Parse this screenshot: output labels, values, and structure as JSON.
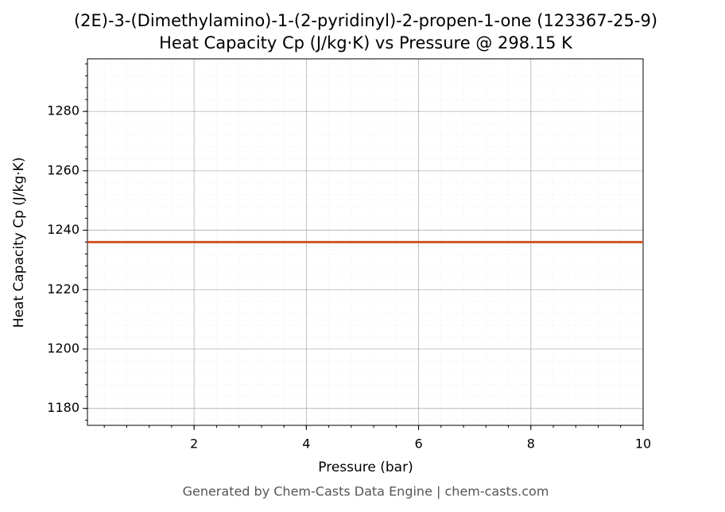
{
  "chart_data": {
    "type": "line",
    "title": "(2E)-3-(Dimethylamino)-1-(2-pyridinyl)-2-propen-1-one (123367-25-9)",
    "subtitle": "Heat Capacity Cp (J/kg·K) vs Pressure @ 298.15 K",
    "x_label": "Pressure (bar)",
    "y_label": "Heat Capacity Cp (J/kg·K)",
    "footer": "Generated by Chem-Casts Data Engine | chem-casts.com",
    "x": [
      0.1,
      10
    ],
    "series": [
      {
        "color": "#d2572b",
        "values": [
          1236,
          1236
        ]
      }
    ],
    "xlim": [
      0.1,
      10
    ],
    "xticks": [
      2,
      4,
      6,
      8,
      10
    ],
    "ylim": [
      1174.3,
      1297.7
    ],
    "yticks": [
      1180,
      1200,
      1220,
      1240,
      1260,
      1280
    ],
    "grid": true
  }
}
